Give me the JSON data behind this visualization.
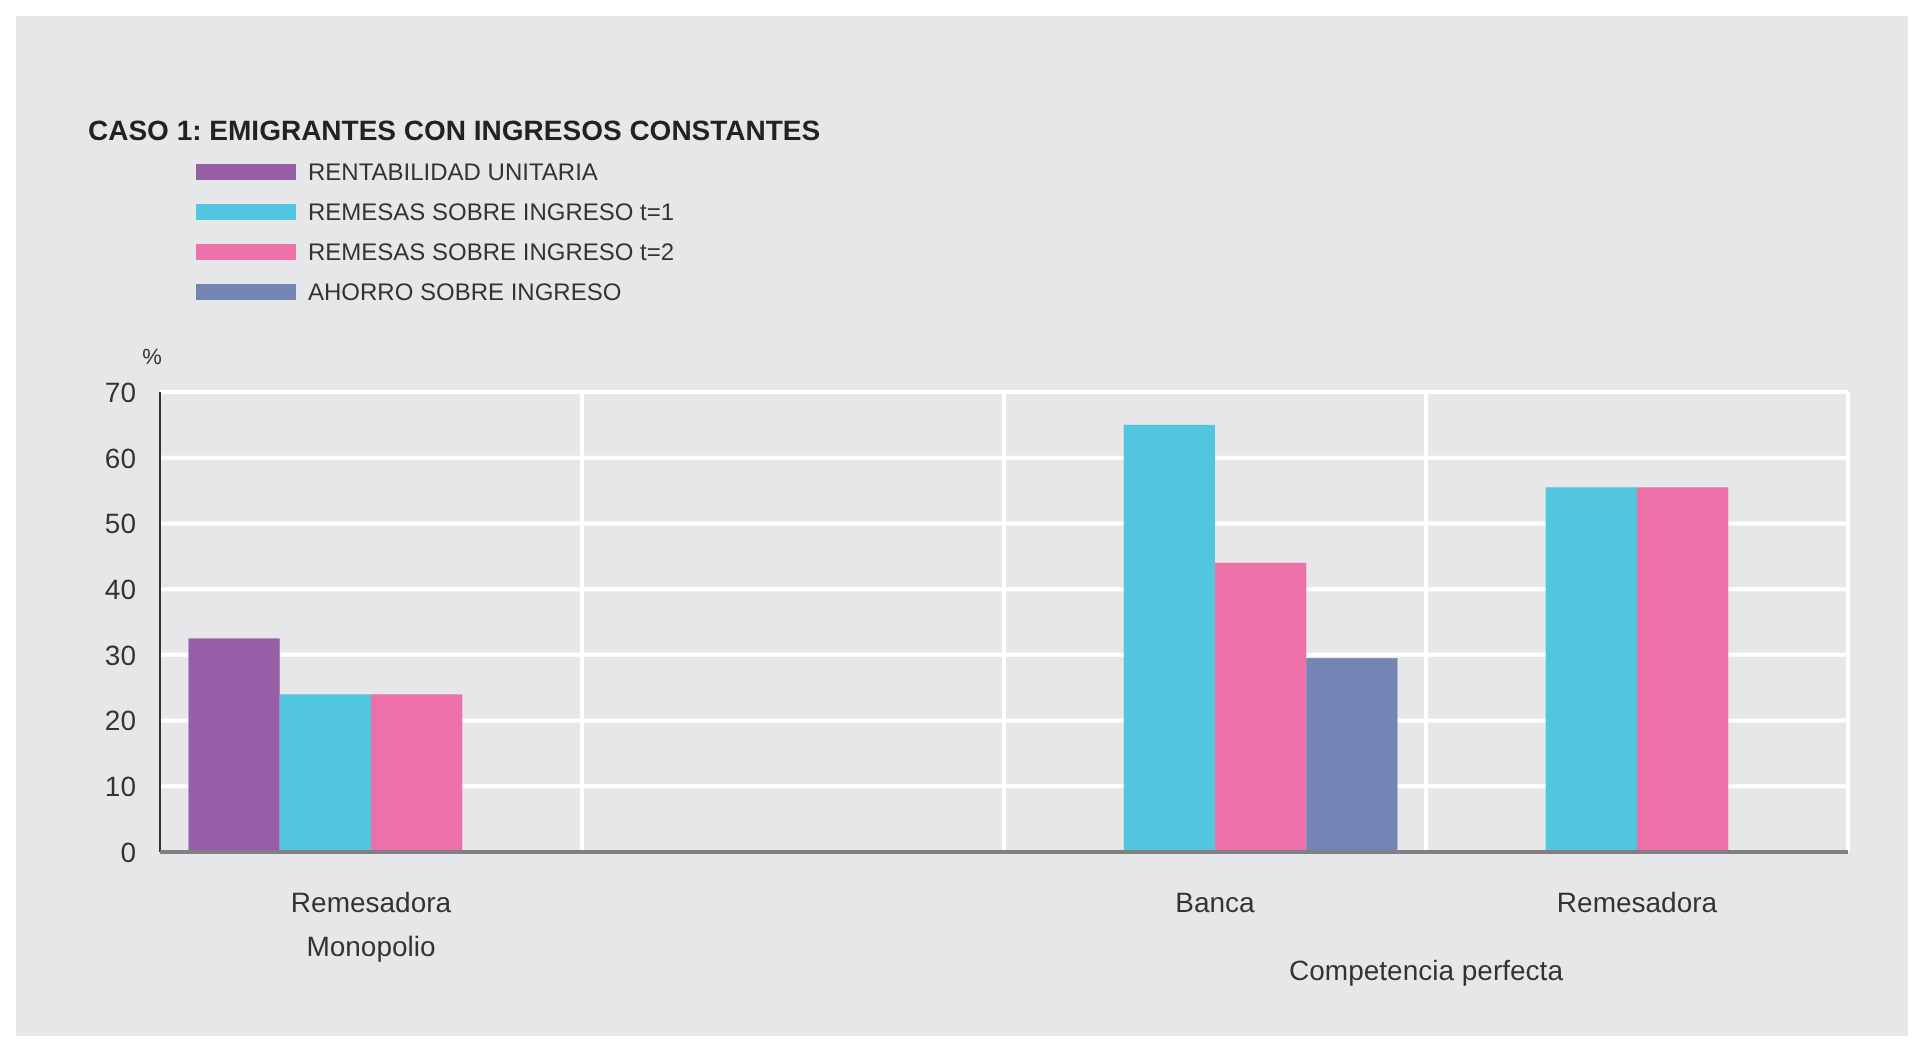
{
  "chart_data": {
    "type": "bar",
    "title": "CASO 1: EMIGRANTES CON INGRESOS CONSTANTES",
    "ylabel": "%",
    "categories": [
      "Remesadora",
      null,
      "Banca",
      "Remesadora"
    ],
    "series": [
      {
        "name": "RENTABILIDAD UNITARIA",
        "color": "#955ea6",
        "values": [
          32.5,
          null,
          null,
          null
        ]
      },
      {
        "name": "REMESAS SOBRE INGRESO t=1",
        "color": "#53c6df",
        "values": [
          24,
          null,
          65,
          55.5
        ]
      },
      {
        "name": "REMESAS SOBRE INGRESO t=2",
        "color": "#ee70a9",
        "values": [
          24,
          null,
          44,
          55.5
        ]
      },
      {
        "name": "AHORRO SOBRE INGRESO",
        "color": "#7484b5",
        "values": [
          null,
          null,
          29.5,
          null
        ]
      }
    ],
    "annotations": [
      "Monopolio",
      "Competencia perfecta"
    ],
    "ylim": [
      0,
      70
    ],
    "yticks": [
      0,
      10,
      20,
      30,
      40,
      50,
      60,
      70
    ],
    "grid": true,
    "legend": "top left"
  }
}
